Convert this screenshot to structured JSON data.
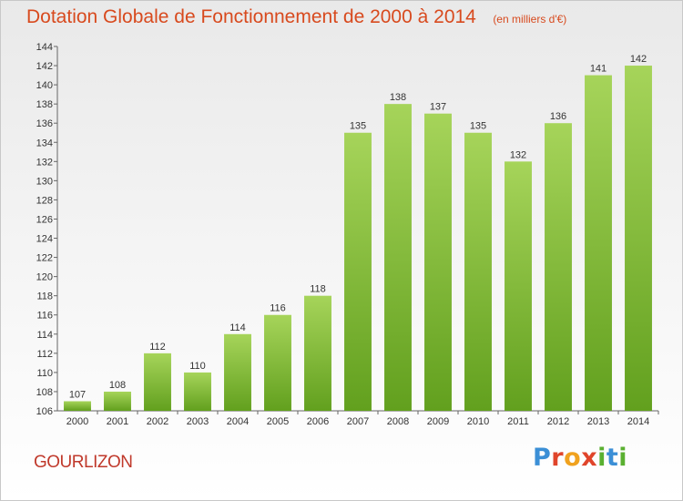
{
  "header": {
    "title": "Dotation Globale de Fonctionnement de 2000 à 2014",
    "unit": "(en milliers d'€)"
  },
  "footer": {
    "commune": "GOURLIZON",
    "brand_letters": [
      {
        "char": "P",
        "color": "#3b8fd6"
      },
      {
        "char": "r",
        "color": "#e0452b"
      },
      {
        "char": "o",
        "color": "#f0a21e"
      },
      {
        "char": "x",
        "color": "#e0452b"
      },
      {
        "char": "i",
        "color": "#5ab031"
      },
      {
        "char": "t",
        "color": "#3b8fd6"
      },
      {
        "char": "i",
        "color": "#5ab031"
      }
    ]
  },
  "colors": {
    "bar_light": "#a6d45a",
    "bar_dark": "#62a01e",
    "title": "#d84a1e",
    "commune": "#c0392b"
  },
  "chart_data": {
    "type": "bar",
    "title": "Dotation Globale de Fonctionnement de 2000 à 2014",
    "subtitle": "(en milliers d'€)",
    "categories": [
      "2000",
      "2001",
      "2002",
      "2003",
      "2004",
      "2005",
      "2006",
      "2007",
      "2008",
      "2009",
      "2010",
      "2011",
      "2012",
      "2013",
      "2014"
    ],
    "values": [
      107,
      108,
      112,
      110,
      114,
      116,
      118,
      135,
      138,
      137,
      135,
      132,
      136,
      141,
      142
    ],
    "xlabel": "",
    "ylabel": "",
    "ylim": [
      106,
      144
    ],
    "yticks": [
      106,
      108,
      110,
      112,
      114,
      116,
      118,
      120,
      122,
      124,
      126,
      128,
      130,
      132,
      134,
      136,
      138,
      140,
      142,
      144
    ],
    "grid": false
  }
}
